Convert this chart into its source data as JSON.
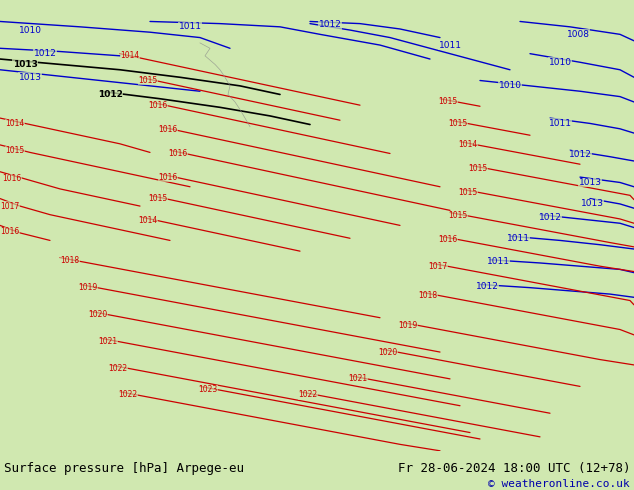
{
  "title_left": "Surface pressure [hPa] Arpege-eu",
  "title_right": "Fr 28-06-2024 18:00 UTC (12+78)",
  "copyright": "© weatheronline.co.uk",
  "bg_color": "#d0e8b0",
  "border_color": "#888888",
  "text_color_black": "#000000",
  "text_color_blue": "#0000cc",
  "text_color_red": "#cc0000",
  "text_color_copyright": "#0000aa",
  "bottom_bar_color": "#e8e8e8",
  "fig_width": 6.34,
  "fig_height": 4.9,
  "dpi": 100
}
